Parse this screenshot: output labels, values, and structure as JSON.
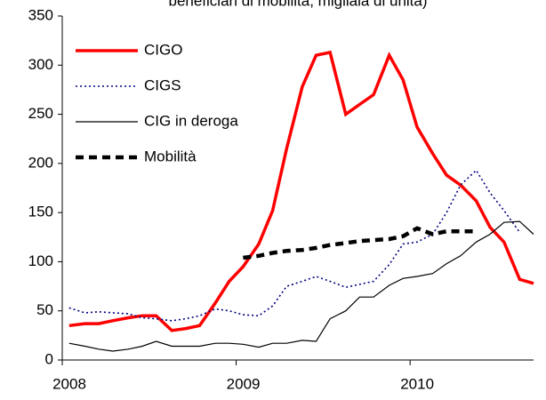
{
  "chart_data": {
    "type": "line",
    "title": "beneficiari di mobilità, migliaia di unità)",
    "x": [
      2008.04,
      2008.13,
      2008.21,
      2008.29,
      2008.38,
      2008.46,
      2008.54,
      2008.63,
      2008.71,
      2008.79,
      2008.88,
      2008.96,
      2009.04,
      2009.13,
      2009.21,
      2009.29,
      2009.38,
      2009.46,
      2009.54,
      2009.63,
      2009.71,
      2009.79,
      2009.88,
      2009.96,
      2010.04,
      2010.13,
      2010.21,
      2010.29,
      2010.38,
      2010.46,
      2010.54,
      2010.63,
      2010.71
    ],
    "series": [
      {
        "name": "CIGO",
        "color": "#ff0000",
        "style": "solid-thick",
        "values": [
          35,
          37,
          37,
          40,
          43,
          45,
          45,
          30,
          32,
          35,
          58,
          80,
          95,
          118,
          152,
          215,
          278,
          310,
          313,
          250,
          260,
          270,
          310,
          285,
          237,
          210,
          188,
          178,
          162,
          135,
          120,
          82,
          78
        ]
      },
      {
        "name": "CIGS",
        "color": "#000080",
        "style": "dotted",
        "values": [
          53,
          48,
          49,
          48,
          47,
          43,
          42,
          40,
          42,
          45,
          52,
          50,
          46,
          45,
          55,
          75,
          80,
          85,
          80,
          74,
          77,
          80,
          97,
          118,
          120,
          128,
          150,
          178,
          193,
          170,
          152,
          130,
          null
        ]
      },
      {
        "name": "CIG in deroga",
        "color": "#000000",
        "style": "solid-thin",
        "values": [
          17,
          14,
          11,
          9,
          11,
          14,
          19,
          14,
          14,
          14,
          17,
          17,
          16,
          13,
          17,
          17,
          20,
          19,
          42,
          50,
          64,
          64,
          76,
          83,
          85,
          88,
          98,
          106,
          120,
          128,
          140,
          141,
          128
        ]
      },
      {
        "name": "Mobilità",
        "color": "#000000",
        "style": "dashed",
        "values": [
          null,
          null,
          null,
          null,
          null,
          null,
          null,
          null,
          null,
          null,
          null,
          null,
          104,
          106,
          109,
          111,
          112,
          114,
          117,
          119,
          121,
          122,
          123,
          126,
          134,
          128,
          131,
          131,
          131,
          null,
          null,
          null,
          null
        ]
      }
    ],
    "xlim": [
      2008,
      2010.71
    ],
    "xticks": [
      2008,
      2009,
      2010
    ],
    "ylim": [
      0,
      350
    ],
    "yticks": [
      0,
      50,
      100,
      150,
      200,
      250,
      300,
      350
    ],
    "legend": "upper-left"
  }
}
